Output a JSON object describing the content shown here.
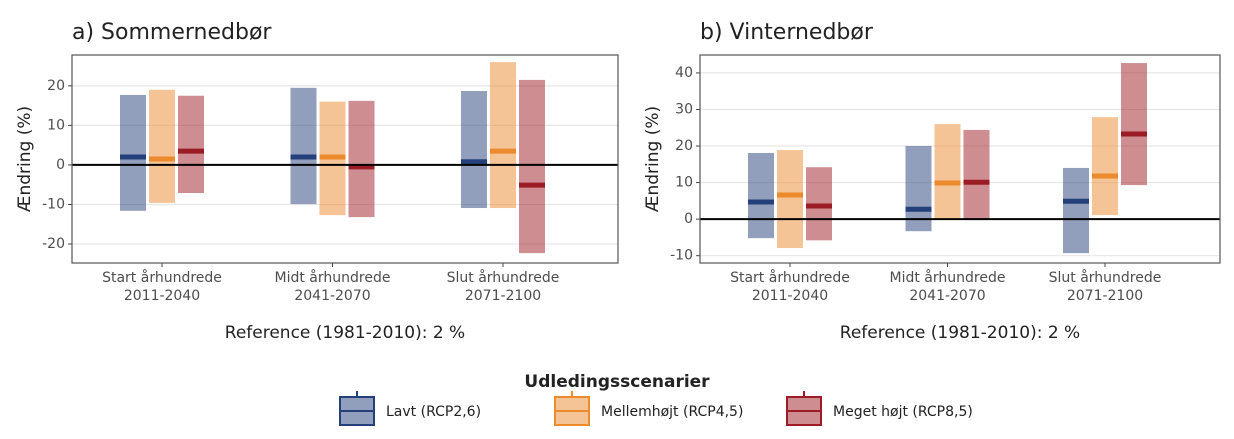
{
  "chart_data": [
    {
      "type": "rangebar",
      "title": "a) Sommernedbør",
      "ylabel": "Ændring (%)",
      "xlabel": "Reference (1981-2010): 2 %",
      "categories": [
        [
          "Start århundrede",
          "2011-2040"
        ],
        [
          "Midt århundrede",
          "2041-2070"
        ],
        [
          "Slut århundrede",
          "2071-2100"
        ]
      ],
      "ylim": [
        -24.8,
        27.8
      ],
      "yticks": [
        -20,
        -10,
        0,
        10,
        20
      ],
      "grid": true,
      "hline": 0,
      "series": [
        {
          "color": "#24407a",
          "values": [
            2.0,
            2.0,
            0.8
          ],
          "low": [
            -11.6,
            -9.9,
            -10.9
          ],
          "high": [
            17.7,
            19.5,
            18.7
          ]
        },
        {
          "color": "#ec8a2e",
          "values": [
            1.5,
            2.0,
            3.5
          ],
          "low": [
            -9.6,
            -12.7,
            -10.9
          ],
          "high": [
            19.0,
            16.0,
            26.0
          ]
        },
        {
          "color": "#9b1c24",
          "values": [
            3.5,
            -0.5,
            -5.1
          ],
          "low": [
            -7.1,
            -13.2,
            -22.3
          ],
          "high": [
            17.5,
            16.2,
            21.5
          ]
        }
      ]
    },
    {
      "type": "rangebar",
      "title": "b) Vinternedbør",
      "ylabel": "Ændring (%)",
      "xlabel": "Reference (1981-2010): 2 %",
      "categories": [
        [
          "Start århundrede",
          "2011-2040"
        ],
        [
          "Midt århundrede",
          "2041-2070"
        ],
        [
          "Slut århundrede",
          "2071-2100"
        ]
      ],
      "ylim": [
        -12,
        44.9
      ],
      "yticks": [
        -10,
        0,
        10,
        20,
        30,
        40
      ],
      "grid": true,
      "hline": 0,
      "series": [
        {
          "color": "#24407a",
          "values": [
            4.7,
            2.7,
            4.9
          ],
          "low": [
            -5.2,
            -3.3,
            -9.3
          ],
          "high": [
            18.1,
            20.0,
            14.0
          ]
        },
        {
          "color": "#ec8a2e",
          "values": [
            6.6,
            9.9,
            11.8
          ],
          "low": [
            -7.9,
            0,
            1.1
          ],
          "high": [
            18.9,
            26.0,
            27.9
          ]
        },
        {
          "color": "#9b1c24",
          "values": [
            3.6,
            10.1,
            23.3
          ],
          "low": [
            -5.8,
            0,
            9.3
          ],
          "high": [
            14.2,
            24.4,
            42.7
          ]
        }
      ]
    }
  ],
  "legend": {
    "title": "Udledingsscenarier",
    "entries": [
      {
        "name": "Lavt (RCP2,6)",
        "color": "#24407a"
      },
      {
        "name": "Mellemhøjt (RCP4,5)",
        "color": "#ec8a2e"
      },
      {
        "name": "Meget højt (RCP8,5)",
        "color": "#9b1c24"
      }
    ]
  }
}
